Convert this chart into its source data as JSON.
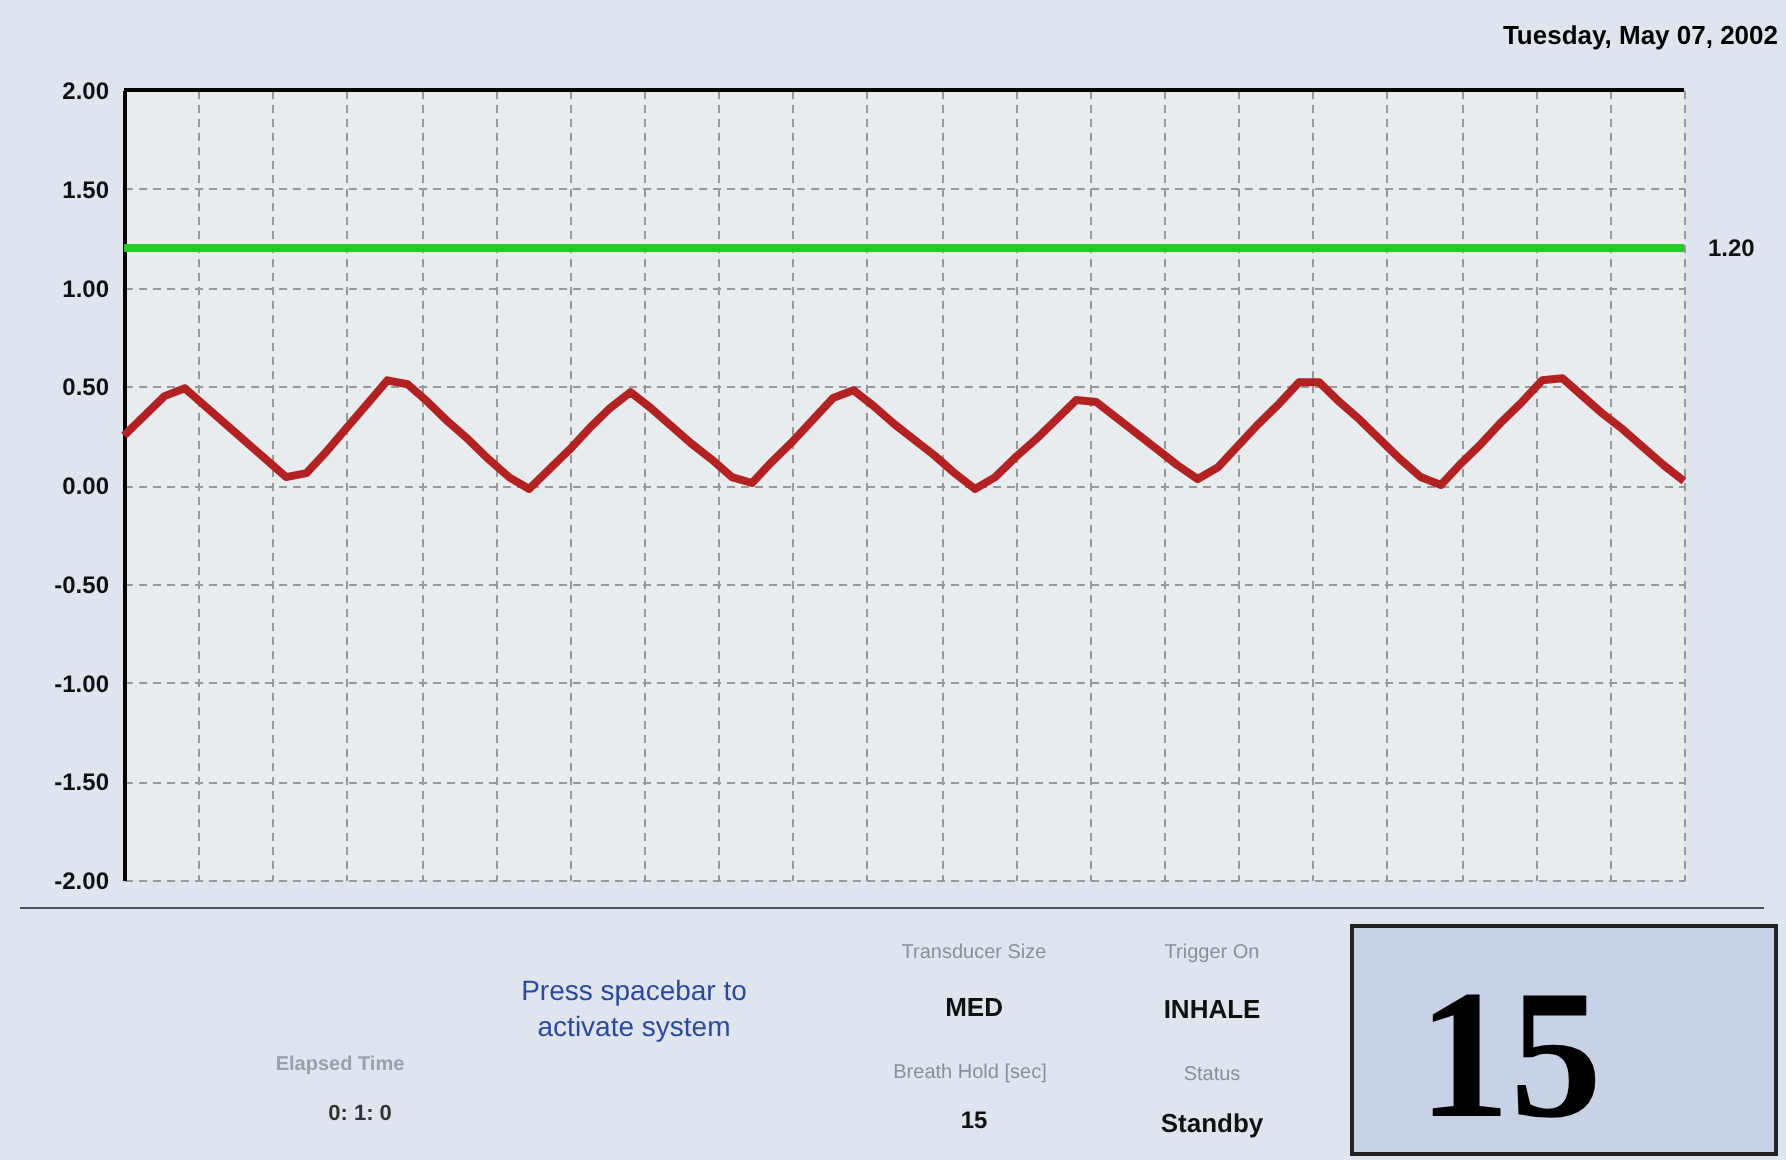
{
  "chart_data": {
    "type": "line",
    "title": "Tuesday, May 07, 2002",
    "categories": [
      null,
      null,
      null,
      null,
      null,
      null,
      null,
      null,
      null,
      null,
      null,
      null,
      null,
      null,
      null,
      null,
      null,
      null,
      null,
      null,
      null,
      null,
      null,
      null,
      null,
      null,
      null,
      null,
      null,
      null,
      null,
      null,
      null,
      null,
      null,
      null,
      null,
      null,
      null,
      null,
      null,
      null,
      null,
      null,
      null,
      null,
      null,
      null,
      null,
      null,
      null,
      null,
      null,
      null,
      null,
      null,
      null,
      null,
      null,
      null,
      null,
      null,
      null,
      null,
      null,
      null,
      null,
      null,
      null,
      null,
      null,
      null,
      null,
      null,
      null,
      null,
      null,
      null
    ],
    "series": [
      {
        "color": "#b22222",
        "values": [
          0.25,
          0.35,
          0.45,
          0.49,
          0.4,
          0.31,
          0.22,
          0.13,
          0.04,
          0.06,
          0.17,
          0.29,
          0.41,
          0.53,
          0.51,
          0.42,
          0.32,
          0.23,
          0.13,
          0.04,
          -0.02,
          0.08,
          0.18,
          0.29,
          0.39,
          0.47,
          0.39,
          0.3,
          0.21,
          0.13,
          0.04,
          0.01,
          0.12,
          0.22,
          0.33,
          0.44,
          0.48,
          0.4,
          0.31,
          0.23,
          0.15,
          0.06,
          -0.02,
          0.04,
          0.14,
          0.23,
          0.33,
          0.43,
          0.42,
          0.34,
          0.26,
          0.18,
          0.1,
          0.03,
          0.09,
          0.2,
          0.31,
          0.41,
          0.52,
          0.52,
          0.42,
          0.33,
          0.23,
          0.13,
          0.04,
          0.0,
          0.11,
          0.21,
          0.32,
          0.42,
          0.53,
          0.54,
          0.45,
          0.36,
          0.28,
          0.19,
          0.1,
          0.02
        ]
      }
    ],
    "ylim": [
      -2,
      2
    ],
    "yticks": [
      {
        "value": 2,
        "label": "2.00"
      },
      {
        "value": 1.5,
        "label": "1.50"
      },
      {
        "value": 1,
        "label": "1.00"
      },
      {
        "value": 0.5,
        "label": "0.50"
      },
      {
        "value": 0,
        "label": "0.00"
      },
      {
        "value": -0.5,
        "label": "-0.50"
      },
      {
        "value": -1,
        "label": "-1.00"
      },
      {
        "value": -1.5,
        "label": "-1.50"
      },
      {
        "value": -2,
        "label": "-2.00"
      }
    ],
    "grid": true,
    "tick_labels": "y",
    "ref_lines": [
      {
        "axis": "y",
        "value": 1.2,
        "label": "1.20",
        "color": "#22cc22"
      }
    ],
    "annotations": [
      "Press spacebar to activate system",
      "Elapsed Time",
      "0: 1: 0",
      "Transducer Size",
      "MED",
      "Trigger On",
      "INHALE",
      "Breath Hold [sec]",
      "15",
      "Status",
      "Standby",
      "15"
    ]
  }
}
